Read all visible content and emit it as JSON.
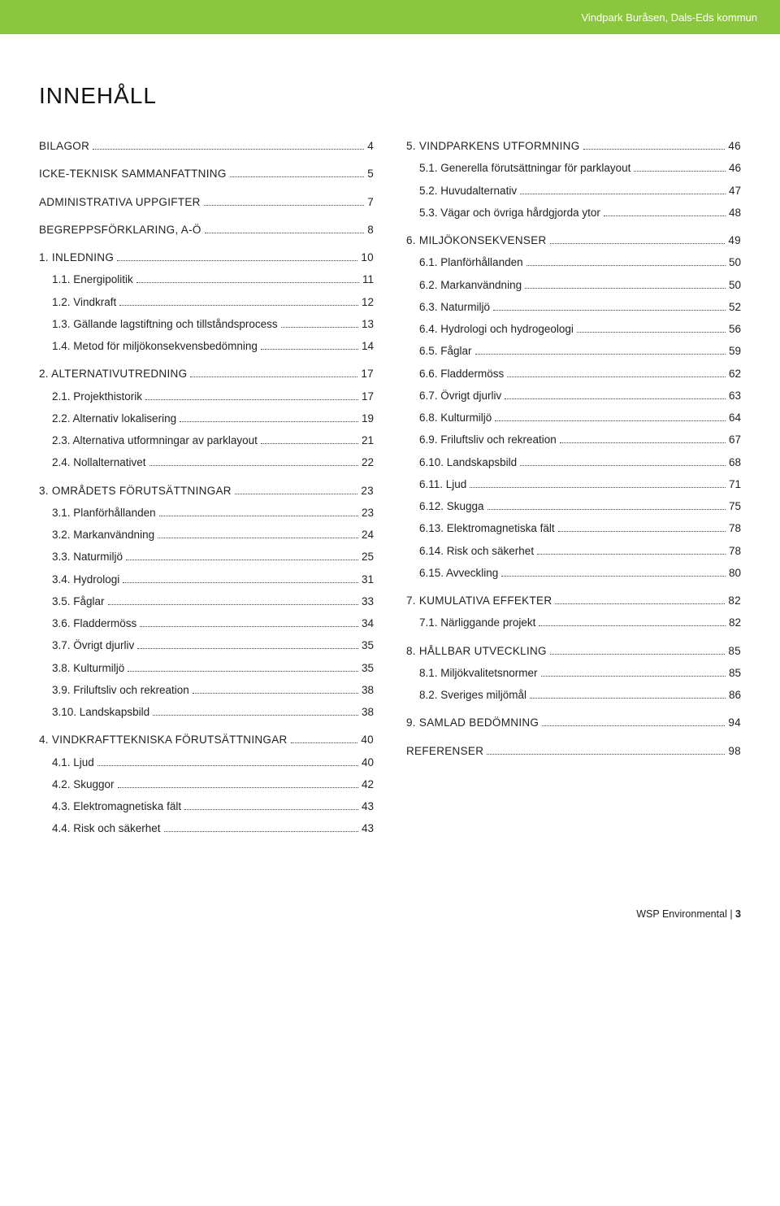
{
  "header": {
    "text": "Vindpark Buråsen, Dals-Eds kommun",
    "bg_color": "#8cc63f",
    "text_color": "#ffffff"
  },
  "title": "INNEHÅLL",
  "footer": {
    "text": "WSP Environmental",
    "page": "3"
  },
  "left": [
    {
      "type": "heading",
      "label": "BILAGOR",
      "page": "4"
    },
    {
      "type": "heading",
      "label": "ICKE-TEKNISK SAMMANFATTNING",
      "page": "5"
    },
    {
      "type": "heading",
      "label": "ADMINISTRATIVA UPPGIFTER",
      "page": "7"
    },
    {
      "type": "heading",
      "label": "BEGREPPSFÖRKLARING, A-Ö",
      "page": "8"
    },
    {
      "type": "heading",
      "label": "1.  INLEDNING",
      "page": "10"
    },
    {
      "type": "sub",
      "label": "1.1. Energipolitik",
      "page": "11"
    },
    {
      "type": "sub",
      "label": "1.2. Vindkraft",
      "page": "12"
    },
    {
      "type": "sub",
      "label": "1.3. Gällande lagstiftning och tillståndsprocess",
      "page": "13"
    },
    {
      "type": "sub",
      "label": "1.4. Metod för miljökonsekvensbedömning",
      "page": "14"
    },
    {
      "type": "heading",
      "label": "2.  ALTERNATIVUTREDNING",
      "page": "17"
    },
    {
      "type": "sub",
      "label": "2.1. Projekthistorik",
      "page": "17"
    },
    {
      "type": "sub",
      "label": "2.2. Alternativ lokalisering",
      "page": "19"
    },
    {
      "type": "sub",
      "label": "2.3. Alternativa utformningar av parklayout",
      "page": "21"
    },
    {
      "type": "sub",
      "label": "2.4. Nollalternativet",
      "page": "22"
    },
    {
      "type": "heading",
      "label": "3.  OMRÅDETS FÖRUTSÄTTNINGAR",
      "page": "23"
    },
    {
      "type": "sub",
      "label": "3.1. Planförhållanden",
      "page": "23"
    },
    {
      "type": "sub",
      "label": "3.2. Markanvändning",
      "page": "24"
    },
    {
      "type": "sub",
      "label": "3.3. Naturmiljö",
      "page": "25"
    },
    {
      "type": "sub",
      "label": "3.4. Hydrologi",
      "page": "31"
    },
    {
      "type": "sub",
      "label": "3.5. Fåglar",
      "page": "33"
    },
    {
      "type": "sub",
      "label": "3.6. Fladdermöss",
      "page": "34"
    },
    {
      "type": "sub",
      "label": "3.7. Övrigt djurliv",
      "page": "35"
    },
    {
      "type": "sub",
      "label": "3.8. Kulturmiljö",
      "page": "35"
    },
    {
      "type": "sub",
      "label": "3.9. Friluftsliv och rekreation",
      "page": "38"
    },
    {
      "type": "sub",
      "label": "3.10. Landskapsbild",
      "page": "38"
    },
    {
      "type": "heading",
      "label": "4.  VINDKRAFTTEKNISKA FÖRUTSÄTTNINGAR",
      "page": "40"
    },
    {
      "type": "sub",
      "label": "4.1. Ljud",
      "page": "40"
    },
    {
      "type": "sub",
      "label": "4.2. Skuggor",
      "page": "42"
    },
    {
      "type": "sub",
      "label": "4.3. Elektromagnetiska fält",
      "page": "43"
    },
    {
      "type": "sub",
      "label": "4.4. Risk och säkerhet",
      "page": "43"
    }
  ],
  "right": [
    {
      "type": "heading",
      "label": "5.  VINDPARKENS UTFORMNING",
      "page": "46"
    },
    {
      "type": "sub",
      "label": "5.1. Generella förutsättningar för parklayout",
      "page": "46"
    },
    {
      "type": "sub",
      "label": "5.2. Huvudalternativ",
      "page": "47"
    },
    {
      "type": "sub",
      "label": "5.3. Vägar och övriga hårdgjorda ytor",
      "page": "48"
    },
    {
      "type": "heading",
      "label": "6.  MILJÖKONSEKVENSER",
      "page": "49"
    },
    {
      "type": "sub",
      "label": "6.1. Planförhållanden",
      "page": "50"
    },
    {
      "type": "sub",
      "label": "6.2. Markanvändning",
      "page": "50"
    },
    {
      "type": "sub",
      "label": "6.3. Naturmiljö",
      "page": "52"
    },
    {
      "type": "sub",
      "label": "6.4. Hydrologi och hydrogeologi",
      "page": "56"
    },
    {
      "type": "sub",
      "label": "6.5. Fåglar",
      "page": "59"
    },
    {
      "type": "sub",
      "label": "6.6. Fladdermöss",
      "page": "62"
    },
    {
      "type": "sub",
      "label": "6.7. Övrigt djurliv",
      "page": "63"
    },
    {
      "type": "sub",
      "label": "6.8. Kulturmiljö",
      "page": "64"
    },
    {
      "type": "sub",
      "label": "6.9. Friluftsliv och rekreation",
      "page": "67"
    },
    {
      "type": "sub",
      "label": "6.10. Landskapsbild",
      "page": "68"
    },
    {
      "type": "sub",
      "label": "6.11. Ljud",
      "page": "71"
    },
    {
      "type": "sub",
      "label": "6.12. Skugga",
      "page": "75"
    },
    {
      "type": "sub",
      "label": "6.13. Elektromagnetiska fält",
      "page": "78"
    },
    {
      "type": "sub",
      "label": "6.14. Risk och säkerhet",
      "page": "78"
    },
    {
      "type": "sub",
      "label": "6.15. Avveckling",
      "page": "80"
    },
    {
      "type": "heading",
      "label": "7.  KUMULATIVA EFFEKTER",
      "page": "82"
    },
    {
      "type": "sub",
      "label": "7.1. Närliggande projekt",
      "page": "82"
    },
    {
      "type": "heading",
      "label": "8.  HÅLLBAR UTVECKLING",
      "page": "85"
    },
    {
      "type": "sub",
      "label": "8.1. Miljökvalitetsnormer",
      "page": "85"
    },
    {
      "type": "sub",
      "label": "8.2. Sveriges miljömål",
      "page": "86"
    },
    {
      "type": "heading",
      "label": "9.  SAMLAD BEDÖMNING",
      "page": "94"
    },
    {
      "type": "heading",
      "label": "REFERENSER",
      "page": "98"
    }
  ]
}
